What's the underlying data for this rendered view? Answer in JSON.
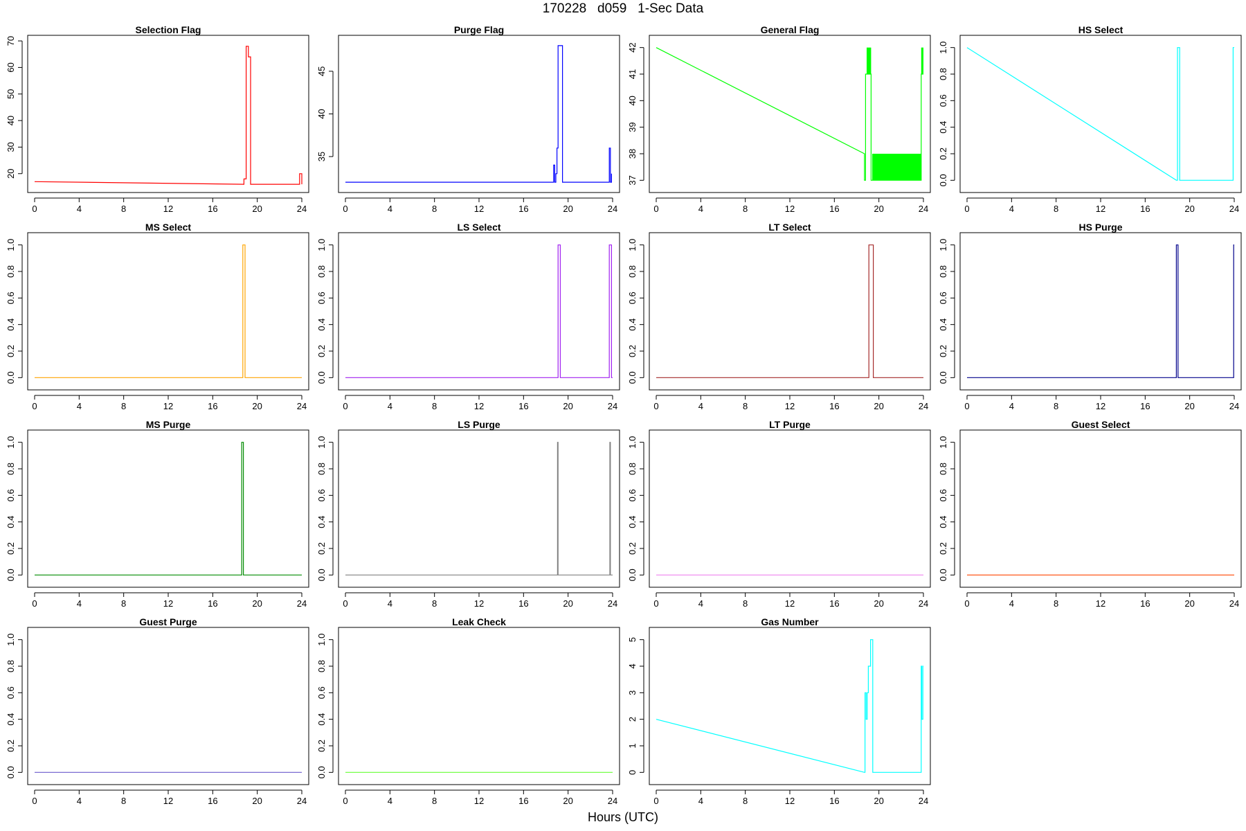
{
  "header": {
    "title": "170228   d059   1-Sec Data",
    "xlabel": "Hours (UTC)"
  },
  "chart_data": [
    {
      "type": "line",
      "title": "Selection Flag",
      "color": "#ff0000",
      "xlim": [
        0,
        24
      ],
      "ylim": [
        15.5,
        69.5
      ],
      "xticks": [
        0,
        4,
        8,
        12,
        16,
        20,
        24
      ],
      "yticks": [
        20,
        30,
        40,
        50,
        60,
        70
      ],
      "ytick_labels": [
        "20",
        "30",
        "40",
        "50",
        "60",
        "70"
      ],
      "x": [
        0,
        18.8,
        18.8,
        19.0,
        19.0,
        19.2,
        19.2,
        19.4,
        19.4,
        23.8,
        23.8,
        24.0,
        24.0
      ],
      "y": [
        17,
        16,
        18,
        18,
        68,
        68,
        64,
        64,
        16,
        16,
        20,
        20,
        16
      ]
    },
    {
      "type": "line",
      "title": "Purge Flag",
      "color": "#0000ff",
      "xlim": [
        0,
        24
      ],
      "ylim": [
        31.6,
        48.4
      ],
      "xticks": [
        0,
        4,
        8,
        12,
        16,
        20,
        24
      ],
      "yticks": [
        35,
        40,
        45
      ],
      "ytick_labels": [
        "35",
        "40",
        "45"
      ],
      "x": [
        0,
        18.7,
        18.7,
        18.8,
        18.8,
        18.9,
        18.9,
        19.0,
        19.0,
        19.1,
        19.1,
        19.5,
        19.5,
        23.7,
        23.7,
        23.8,
        23.8,
        23.9,
        23.9
      ],
      "y": [
        32,
        32,
        34,
        34,
        32,
        32,
        33,
        33,
        36,
        36,
        48,
        48,
        32,
        32,
        36,
        36,
        32,
        32,
        33
      ]
    },
    {
      "type": "line",
      "title": "General Flag",
      "color": "#00ff00",
      "xlim": [
        0,
        24
      ],
      "ylim": [
        36.8,
        42.2
      ],
      "xticks": [
        0,
        4,
        8,
        12,
        16,
        20,
        24
      ],
      "yticks": [
        37,
        38,
        39,
        40,
        41,
        42
      ],
      "ytick_labels": [
        "37",
        "38",
        "39",
        "40",
        "41",
        "42"
      ],
      "x": [
        0,
        18.7,
        18.7,
        18.8,
        18.8,
        19.3,
        19.3,
        23.8,
        23.8,
        24.0
      ],
      "y": [
        42,
        38,
        37,
        37,
        41,
        41,
        37,
        37,
        41,
        41
      ],
      "filled_bands": [
        {
          "x0": 18.9,
          "x1": 19.3,
          "y0": 41,
          "y1": 42
        },
        {
          "x0": 19.4,
          "x1": 23.8,
          "y0": 37,
          "y1": 38
        },
        {
          "x0": 23.8,
          "x1": 24.0,
          "y0": 41,
          "y1": 42
        }
      ]
    },
    {
      "type": "line",
      "title": "HS Select",
      "color": "#00ffff",
      "xlim": [
        0,
        24
      ],
      "ylim": [
        -0.04,
        1.04
      ],
      "xticks": [
        0,
        4,
        8,
        12,
        16,
        20,
        24
      ],
      "yticks": [
        0.0,
        0.2,
        0.4,
        0.6,
        0.8,
        1.0
      ],
      "ytick_labels": [
        "0.0",
        "0.2",
        "0.4",
        "0.6",
        "0.8",
        "1.0"
      ],
      "x": [
        0,
        18.8,
        18.8,
        18.9,
        18.9,
        19.1,
        19.1,
        23.9,
        23.9,
        24.0
      ],
      "y": [
        1,
        0,
        0,
        0,
        1,
        1,
        0,
        0,
        1,
        1
      ]
    },
    {
      "type": "line",
      "title": "MS Select",
      "color": "#ffa500",
      "xlim": [
        0,
        24
      ],
      "ylim": [
        -0.04,
        1.04
      ],
      "xticks": [
        0,
        4,
        8,
        12,
        16,
        20,
        24
      ],
      "yticks": [
        0.0,
        0.2,
        0.4,
        0.6,
        0.8,
        1.0
      ],
      "ytick_labels": [
        "0.0",
        "0.2",
        "0.4",
        "0.6",
        "0.8",
        "1.0"
      ],
      "x": [
        0,
        18.7,
        18.7,
        18.9,
        18.9,
        24.0
      ],
      "y": [
        0,
        0,
        1,
        1,
        0,
        0
      ]
    },
    {
      "type": "line",
      "title": "LS Select",
      "color": "#a020f0",
      "xlim": [
        0,
        24
      ],
      "ylim": [
        -0.04,
        1.04
      ],
      "xticks": [
        0,
        4,
        8,
        12,
        16,
        20,
        24
      ],
      "yticks": [
        0.0,
        0.2,
        0.4,
        0.6,
        0.8,
        1.0
      ],
      "ytick_labels": [
        "0.0",
        "0.2",
        "0.4",
        "0.6",
        "0.8",
        "1.0"
      ],
      "x": [
        0,
        19.1,
        19.1,
        19.3,
        19.3,
        23.7,
        23.7,
        23.9,
        23.9,
        24.0
      ],
      "y": [
        0,
        0,
        1,
        1,
        0,
        0,
        1,
        1,
        0,
        0
      ]
    },
    {
      "type": "line",
      "title": "LT Select",
      "color": "#a52a2a",
      "xlim": [
        0,
        24
      ],
      "ylim": [
        -0.04,
        1.04
      ],
      "xticks": [
        0,
        4,
        8,
        12,
        16,
        20,
        24
      ],
      "yticks": [
        0.0,
        0.2,
        0.4,
        0.6,
        0.8,
        1.0
      ],
      "ytick_labels": [
        "0.0",
        "0.2",
        "0.4",
        "0.6",
        "0.8",
        "1.0"
      ],
      "x": [
        0,
        19.1,
        19.1,
        19.5,
        19.5,
        24.0
      ],
      "y": [
        0,
        0,
        1,
        1,
        0,
        0
      ]
    },
    {
      "type": "line",
      "title": "HS Purge",
      "color": "#00008b",
      "xlim": [
        0,
        24
      ],
      "ylim": [
        -0.04,
        1.04
      ],
      "xticks": [
        0,
        4,
        8,
        12,
        16,
        20,
        24
      ],
      "yticks": [
        0.0,
        0.2,
        0.4,
        0.6,
        0.8,
        1.0
      ],
      "ytick_labels": [
        "0.0",
        "0.2",
        "0.4",
        "0.6",
        "0.8",
        "1.0"
      ],
      "x": [
        0,
        18.8,
        18.8,
        18.95,
        18.95,
        23.95,
        23.95,
        24.0
      ],
      "y": [
        0,
        0,
        1,
        1,
        0,
        0,
        1,
        1
      ]
    },
    {
      "type": "line",
      "title": "MS Purge",
      "color": "#008b00",
      "xlim": [
        0,
        24
      ],
      "ylim": [
        -0.04,
        1.04
      ],
      "xticks": [
        0,
        4,
        8,
        12,
        16,
        20,
        24
      ],
      "yticks": [
        0.0,
        0.2,
        0.4,
        0.6,
        0.8,
        1.0
      ],
      "ytick_labels": [
        "0.0",
        "0.2",
        "0.4",
        "0.6",
        "0.8",
        "1.0"
      ],
      "x": [
        0,
        18.6,
        18.6,
        18.75,
        18.75,
        24.0
      ],
      "y": [
        0,
        0,
        1,
        1,
        0,
        0
      ]
    },
    {
      "type": "line",
      "title": "LS Purge",
      "color": "#808080",
      "xlim": [
        0,
        24
      ],
      "ylim": [
        -0.04,
        1.04
      ],
      "xticks": [
        0,
        4,
        8,
        12,
        16,
        20,
        24
      ],
      "yticks": [
        0.0,
        0.2,
        0.4,
        0.6,
        0.8,
        1.0
      ],
      "ytick_labels": [
        "0.0",
        "0.2",
        "0.4",
        "0.6",
        "0.8",
        "1.0"
      ],
      "x": [
        0,
        19.05,
        19.05,
        19.1,
        19.1,
        23.75,
        23.75,
        23.8,
        23.8,
        24.0
      ],
      "y": [
        0,
        0,
        1,
        1,
        0,
        0,
        1,
        1,
        0,
        0
      ]
    },
    {
      "type": "line",
      "title": "LT Purge",
      "color": "#ee82ee",
      "xlim": [
        0,
        24
      ],
      "ylim": [
        -0.04,
        1.04
      ],
      "xticks": [
        0,
        4,
        8,
        12,
        16,
        20,
        24
      ],
      "yticks": [
        0.0,
        0.2,
        0.4,
        0.6,
        0.8,
        1.0
      ],
      "ytick_labels": [
        "0.0",
        "0.2",
        "0.4",
        "0.6",
        "0.8",
        "1.0"
      ],
      "x": [
        0,
        24
      ],
      "y": [
        0,
        0
      ]
    },
    {
      "type": "line",
      "title": "Guest Select",
      "color": "#ff4500",
      "xlim": [
        0,
        24
      ],
      "ylim": [
        -0.04,
        1.04
      ],
      "xticks": [
        0,
        4,
        8,
        12,
        16,
        20,
        24
      ],
      "yticks": [
        0.0,
        0.2,
        0.4,
        0.6,
        0.8,
        1.0
      ],
      "ytick_labels": [
        "0.0",
        "0.2",
        "0.4",
        "0.6",
        "0.8",
        "1.0"
      ],
      "x": [
        0,
        24
      ],
      "y": [
        0,
        0
      ]
    },
    {
      "type": "line",
      "title": "Guest Purge",
      "color": "#6a5acd",
      "xlim": [
        0,
        24
      ],
      "ylim": [
        -0.04,
        1.04
      ],
      "xticks": [
        0,
        4,
        8,
        12,
        16,
        20,
        24
      ],
      "yticks": [
        0.0,
        0.2,
        0.4,
        0.6,
        0.8,
        1.0
      ],
      "ytick_labels": [
        "0.0",
        "0.2",
        "0.4",
        "0.6",
        "0.8",
        "1.0"
      ],
      "x": [
        0,
        24
      ],
      "y": [
        0,
        0
      ]
    },
    {
      "type": "line",
      "title": "Leak Check",
      "color": "#66ff33",
      "xlim": [
        0,
        24
      ],
      "ylim": [
        -0.04,
        1.04
      ],
      "xticks": [
        0,
        4,
        8,
        12,
        16,
        20,
        24
      ],
      "yticks": [
        0.0,
        0.2,
        0.4,
        0.6,
        0.8,
        1.0
      ],
      "ytick_labels": [
        "0.0",
        "0.2",
        "0.4",
        "0.6",
        "0.8",
        "1.0"
      ],
      "x": [
        0,
        24
      ],
      "y": [
        0,
        0
      ]
    },
    {
      "type": "line",
      "title": "Gas Number",
      "color": "#00ffff",
      "xlim": [
        0,
        24
      ],
      "ylim": [
        -0.2,
        5.2
      ],
      "xticks": [
        0,
        4,
        8,
        12,
        16,
        20,
        24
      ],
      "yticks": [
        0,
        1,
        2,
        3,
        4,
        5
      ],
      "ytick_labels": [
        "0",
        "1",
        "2",
        "3",
        "4",
        "5"
      ],
      "x": [
        0,
        18.7,
        18.7,
        18.75,
        18.75,
        18.85,
        18.85,
        18.95,
        18.95,
        19.05,
        19.05,
        19.15,
        19.15,
        19.25,
        19.25,
        19.45,
        19.45,
        23.8,
        23.8,
        23.85,
        23.85,
        23.95,
        23.95,
        24.0
      ],
      "y": [
        2,
        0,
        0,
        0,
        3,
        3,
        2,
        2,
        3,
        3,
        4,
        4,
        4,
        4,
        5,
        5,
        0,
        0,
        4,
        4,
        2,
        2,
        4,
        4
      ]
    }
  ]
}
